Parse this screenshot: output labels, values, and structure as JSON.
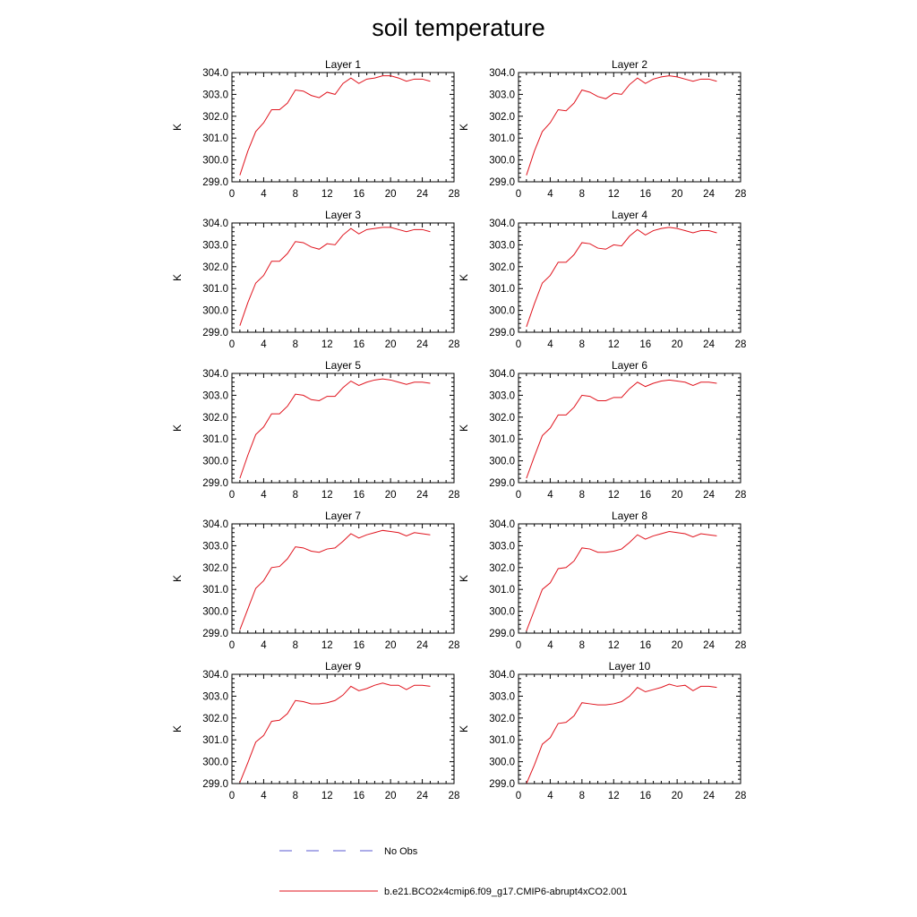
{
  "figure": {
    "title": "soil temperature",
    "legend": [
      {
        "label": "No Obs",
        "color": "#5a5ad0",
        "dash": "dashed"
      },
      {
        "label": "b.e21.BCO2x4cmip6.f09_g17.CMIP6-abrupt4xCO2.001",
        "color": "#e0141e",
        "dash": "solid"
      }
    ]
  },
  "chart_data": [
    {
      "type": "line",
      "title": "Layer 1",
      "ylabel": "K",
      "xlim": [
        0,
        28
      ],
      "ylim": [
        299.0,
        304.0
      ],
      "x_ticks": [
        "0",
        "4",
        "8",
        "12",
        "16",
        "20",
        "24",
        "28"
      ],
      "y_ticks": [
        "299.0",
        "300.0",
        "301.0",
        "302.0",
        "303.0",
        "304.0"
      ],
      "x": [
        1,
        2,
        3,
        4,
        5,
        6,
        7,
        8,
        9,
        10,
        11,
        12,
        13,
        14,
        15,
        16,
        17,
        18,
        19,
        20,
        21,
        22,
        23,
        24,
        25
      ],
      "series": [
        {
          "name": "b.e21.BCO2x4cmip6.f09_g17.CMIP6-abrupt4xCO2.001",
          "values": [
            299.3,
            300.4,
            301.3,
            301.7,
            302.3,
            302.3,
            302.6,
            303.2,
            303.15,
            302.95,
            302.85,
            303.1,
            303.0,
            303.5,
            303.75,
            303.5,
            303.7,
            303.75,
            303.85,
            303.85,
            303.75,
            303.6,
            303.7,
            303.7,
            303.6
          ]
        }
      ]
    },
    {
      "type": "line",
      "title": "Layer 2",
      "ylabel": "K",
      "xlim": [
        0,
        28
      ],
      "ylim": [
        299.0,
        304.0
      ],
      "x_ticks": [
        "0",
        "4",
        "8",
        "12",
        "16",
        "20",
        "24",
        "28"
      ],
      "y_ticks": [
        "299.0",
        "300.0",
        "301.0",
        "302.0",
        "303.0",
        "304.0"
      ],
      "x": [
        1,
        2,
        3,
        4,
        5,
        6,
        7,
        8,
        9,
        10,
        11,
        12,
        13,
        14,
        15,
        16,
        17,
        18,
        19,
        20,
        21,
        22,
        23,
        24,
        25
      ],
      "series": [
        {
          "name": "b.e21.BCO2x4cmip6.f09_g17.CMIP6-abrupt4xCO2.001",
          "values": [
            299.3,
            300.4,
            301.3,
            301.7,
            302.3,
            302.25,
            302.6,
            303.2,
            303.1,
            302.9,
            302.8,
            303.05,
            303.0,
            303.45,
            303.75,
            303.5,
            303.7,
            303.8,
            303.85,
            303.8,
            303.7,
            303.6,
            303.7,
            303.7,
            303.6
          ]
        }
      ]
    },
    {
      "type": "line",
      "title": "Layer 3",
      "ylabel": "K",
      "xlim": [
        0,
        28
      ],
      "ylim": [
        299.0,
        304.0
      ],
      "x_ticks": [
        "0",
        "4",
        "8",
        "12",
        "16",
        "20",
        "24",
        "28"
      ],
      "y_ticks": [
        "299.0",
        "300.0",
        "301.0",
        "302.0",
        "303.0",
        "304.0"
      ],
      "x": [
        1,
        2,
        3,
        4,
        5,
        6,
        7,
        8,
        9,
        10,
        11,
        12,
        13,
        14,
        15,
        16,
        17,
        18,
        19,
        20,
        21,
        22,
        23,
        24,
        25
      ],
      "series": [
        {
          "name": "b.e21.BCO2x4cmip6.f09_g17.CMIP6-abrupt4xCO2.001",
          "values": [
            299.3,
            300.35,
            301.25,
            301.6,
            302.25,
            302.25,
            302.6,
            303.15,
            303.1,
            302.9,
            302.8,
            303.05,
            303.0,
            303.45,
            303.75,
            303.5,
            303.7,
            303.75,
            303.8,
            303.8,
            303.7,
            303.6,
            303.7,
            303.7,
            303.6
          ]
        }
      ]
    },
    {
      "type": "line",
      "title": "Layer 4",
      "ylabel": "K",
      "xlim": [
        0,
        28
      ],
      "ylim": [
        299.0,
        304.0
      ],
      "x_ticks": [
        "0",
        "4",
        "8",
        "12",
        "16",
        "20",
        "24",
        "28"
      ],
      "y_ticks": [
        "299.0",
        "300.0",
        "301.0",
        "302.0",
        "303.0",
        "304.0"
      ],
      "x": [
        1,
        2,
        3,
        4,
        5,
        6,
        7,
        8,
        9,
        10,
        11,
        12,
        13,
        14,
        15,
        16,
        17,
        18,
        19,
        20,
        21,
        22,
        23,
        24,
        25
      ],
      "series": [
        {
          "name": "b.e21.BCO2x4cmip6.f09_g17.CMIP6-abrupt4xCO2.001",
          "values": [
            299.25,
            300.3,
            301.25,
            301.6,
            302.2,
            302.2,
            302.55,
            303.1,
            303.05,
            302.85,
            302.8,
            303.0,
            302.95,
            303.4,
            303.7,
            303.45,
            303.65,
            303.75,
            303.8,
            303.75,
            303.65,
            303.55,
            303.65,
            303.65,
            303.55
          ]
        }
      ]
    },
    {
      "type": "line",
      "title": "Layer 5",
      "ylabel": "K",
      "xlim": [
        0,
        28
      ],
      "ylim": [
        299.0,
        304.0
      ],
      "x_ticks": [
        "0",
        "4",
        "8",
        "12",
        "16",
        "20",
        "24",
        "28"
      ],
      "y_ticks": [
        "299.0",
        "300.0",
        "301.0",
        "302.0",
        "303.0",
        "304.0"
      ],
      "x": [
        1,
        2,
        3,
        4,
        5,
        6,
        7,
        8,
        9,
        10,
        11,
        12,
        13,
        14,
        15,
        16,
        17,
        18,
        19,
        20,
        21,
        22,
        23,
        24,
        25
      ],
      "series": [
        {
          "name": "b.e21.BCO2x4cmip6.f09_g17.CMIP6-abrupt4xCO2.001",
          "values": [
            299.2,
            300.25,
            301.2,
            301.55,
            302.15,
            302.15,
            302.5,
            303.05,
            303.0,
            302.8,
            302.75,
            302.95,
            302.95,
            303.35,
            303.65,
            303.45,
            303.6,
            303.7,
            303.75,
            303.7,
            303.6,
            303.5,
            303.6,
            303.6,
            303.55
          ]
        }
      ]
    },
    {
      "type": "line",
      "title": "Layer 6",
      "ylabel": "K",
      "xlim": [
        0,
        28
      ],
      "ylim": [
        299.0,
        304.0
      ],
      "x_ticks": [
        "0",
        "4",
        "8",
        "12",
        "16",
        "20",
        "24",
        "28"
      ],
      "y_ticks": [
        "299.0",
        "300.0",
        "301.0",
        "302.0",
        "303.0",
        "304.0"
      ],
      "x": [
        1,
        2,
        3,
        4,
        5,
        6,
        7,
        8,
        9,
        10,
        11,
        12,
        13,
        14,
        15,
        16,
        17,
        18,
        19,
        20,
        21,
        22,
        23,
        24,
        25
      ],
      "series": [
        {
          "name": "b.e21.BCO2x4cmip6.f09_g17.CMIP6-abrupt4xCO2.001",
          "values": [
            299.2,
            300.2,
            301.15,
            301.5,
            302.1,
            302.1,
            302.45,
            303.0,
            302.95,
            302.75,
            302.75,
            302.9,
            302.9,
            303.3,
            303.6,
            303.4,
            303.55,
            303.65,
            303.7,
            303.65,
            303.6,
            303.45,
            303.6,
            303.6,
            303.55
          ]
        }
      ]
    },
    {
      "type": "line",
      "title": "Layer 7",
      "ylabel": "K",
      "xlim": [
        0,
        28
      ],
      "ylim": [
        299.0,
        304.0
      ],
      "x_ticks": [
        "0",
        "4",
        "8",
        "12",
        "16",
        "20",
        "24",
        "28"
      ],
      "y_ticks": [
        "299.0",
        "300.0",
        "301.0",
        "302.0",
        "303.0",
        "304.0"
      ],
      "x": [
        1,
        2,
        3,
        4,
        5,
        6,
        7,
        8,
        9,
        10,
        11,
        12,
        13,
        14,
        15,
        16,
        17,
        18,
        19,
        20,
        21,
        22,
        23,
        24,
        25
      ],
      "series": [
        {
          "name": "b.e21.BCO2x4cmip6.f09_g17.CMIP6-abrupt4xCO2.001",
          "values": [
            299.15,
            300.1,
            301.05,
            301.4,
            302.0,
            302.05,
            302.4,
            302.95,
            302.9,
            302.75,
            302.7,
            302.85,
            302.9,
            303.2,
            303.55,
            303.35,
            303.5,
            303.6,
            303.7,
            303.65,
            303.6,
            303.45,
            303.6,
            303.55,
            303.5
          ]
        }
      ]
    },
    {
      "type": "line",
      "title": "Layer 8",
      "ylabel": "K",
      "xlim": [
        0,
        28
      ],
      "ylim": [
        299.0,
        304.0
      ],
      "x_ticks": [
        "0",
        "4",
        "8",
        "12",
        "16",
        "20",
        "24",
        "28"
      ],
      "y_ticks": [
        "299.0",
        "300.0",
        "301.0",
        "302.0",
        "303.0",
        "304.0"
      ],
      "x": [
        1,
        2,
        3,
        4,
        5,
        6,
        7,
        8,
        9,
        10,
        11,
        12,
        13,
        14,
        15,
        16,
        17,
        18,
        19,
        20,
        21,
        22,
        23,
        24,
        25
      ],
      "series": [
        {
          "name": "b.e21.BCO2x4cmip6.f09_g17.CMIP6-abrupt4xCO2.001",
          "values": [
            299.1,
            300.05,
            301.0,
            301.3,
            301.95,
            302.0,
            302.3,
            302.9,
            302.85,
            302.7,
            302.7,
            302.75,
            302.85,
            303.15,
            303.5,
            303.3,
            303.45,
            303.55,
            303.65,
            303.6,
            303.55,
            303.4,
            303.55,
            303.5,
            303.45
          ]
        }
      ]
    },
    {
      "type": "line",
      "title": "Layer 9",
      "ylabel": "K",
      "xlim": [
        0,
        28
      ],
      "ylim": [
        299.0,
        304.0
      ],
      "x_ticks": [
        "0",
        "4",
        "8",
        "12",
        "16",
        "20",
        "24",
        "28"
      ],
      "y_ticks": [
        "299.0",
        "300.0",
        "301.0",
        "302.0",
        "303.0",
        "304.0"
      ],
      "x": [
        1,
        2,
        3,
        4,
        5,
        6,
        7,
        8,
        9,
        10,
        11,
        12,
        13,
        14,
        15,
        16,
        17,
        18,
        19,
        20,
        21,
        22,
        23,
        24,
        25
      ],
      "series": [
        {
          "name": "b.e21.BCO2x4cmip6.f09_g17.CMIP6-abrupt4xCO2.001",
          "values": [
            299.05,
            299.95,
            300.9,
            301.2,
            301.85,
            301.9,
            302.2,
            302.8,
            302.75,
            302.65,
            302.65,
            302.7,
            302.8,
            303.05,
            303.45,
            303.25,
            303.35,
            303.5,
            303.6,
            303.5,
            303.5,
            303.3,
            303.5,
            303.5,
            303.45
          ]
        }
      ]
    },
    {
      "type": "line",
      "title": "Layer 10",
      "ylabel": "K",
      "xlim": [
        0,
        28
      ],
      "ylim": [
        299.0,
        304.0
      ],
      "x_ticks": [
        "0",
        "4",
        "8",
        "12",
        "16",
        "20",
        "24",
        "28"
      ],
      "y_ticks": [
        "299.0",
        "300.0",
        "301.0",
        "302.0",
        "303.0",
        "304.0"
      ],
      "x": [
        1,
        2,
        3,
        4,
        5,
        6,
        7,
        8,
        9,
        10,
        11,
        12,
        13,
        14,
        15,
        16,
        17,
        18,
        19,
        20,
        21,
        22,
        23,
        24,
        25
      ],
      "series": [
        {
          "name": "b.e21.BCO2x4cmip6.f09_g17.CMIP6-abrupt4xCO2.001",
          "values": [
            299.0,
            299.85,
            300.8,
            301.1,
            301.75,
            301.8,
            302.1,
            302.7,
            302.65,
            302.6,
            302.6,
            302.65,
            302.75,
            303.0,
            303.4,
            303.2,
            303.3,
            303.4,
            303.55,
            303.45,
            303.5,
            303.25,
            303.45,
            303.45,
            303.4
          ]
        }
      ]
    }
  ]
}
